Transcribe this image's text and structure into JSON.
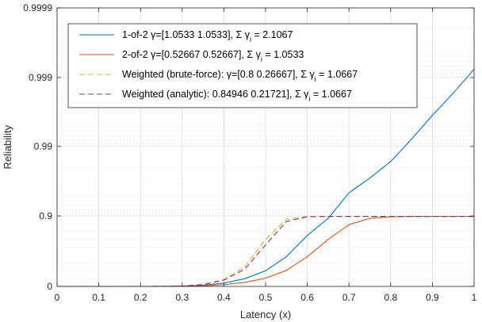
{
  "chart_data": {
    "type": "line",
    "xlabel": "Latency (x)",
    "ylabel": "Reliability",
    "xlim": [
      0,
      1
    ],
    "y_scale": "log-of-unreliability (1 - y)",
    "y_ticks": [
      "0",
      "0.9",
      "0.99",
      "0.999",
      "0.9999"
    ],
    "x_ticks": [
      "0",
      "0.1",
      "0.2",
      "0.3",
      "0.4",
      "0.5",
      "0.6",
      "0.7",
      "0.8",
      "0.9",
      "1"
    ],
    "grid": true,
    "minor_grid": true,
    "legend_position": "top-left",
    "series": [
      {
        "name": "1-of-2  γ=[1.0533      1.0533], Σ γ",
        "name_subscript": "i",
        "name_suffix": " = 2.1067",
        "color": "#0072BD",
        "style": "solid",
        "x": [
          0,
          0.2,
          0.25,
          0.3,
          0.35,
          0.4,
          0.45,
          0.5,
          0.55,
          0.6,
          0.65,
          0.7,
          0.75,
          0.8,
          0.85,
          0.9,
          0.95,
          1.0
        ],
        "y": [
          0,
          0,
          0.0003,
          0.0033,
          0.0145,
          0.042,
          0.098,
          0.2,
          0.38,
          0.65,
          0.87,
          0.9535,
          0.9715,
          0.9835,
          0.9921,
          0.99641,
          0.99828,
          0.99922
        ]
      },
      {
        "name": "2-of-2  γ=[0.52667      0.52667], Σ γ",
        "name_subscript": "i",
        "name_suffix": " = 1.0533",
        "color": "#D95319",
        "style": "solid",
        "x": [
          0,
          0.2,
          0.25,
          0.3,
          0.35,
          0.4,
          0.45,
          0.5,
          0.55,
          0.6,
          0.65,
          0.7,
          0.75,
          0.8,
          0.85,
          0.9,
          0.95,
          1.0
        ],
        "y": [
          0,
          0,
          0.0001,
          0.0015,
          0.0075,
          0.022,
          0.051,
          0.105,
          0.205,
          0.38,
          0.6,
          0.79,
          0.87,
          0.89,
          0.894,
          0.894,
          0.894,
          0.894
        ]
      },
      {
        "name": "Weighted (brute-force): γ=[0.8      0.26667], Σ γ",
        "name_subscript": "i",
        "name_suffix": " = 1.0667",
        "color": "#EDB120",
        "style": "dashed",
        "x": [
          0,
          0.2,
          0.25,
          0.3,
          0.35,
          0.4,
          0.45,
          0.5,
          0.55,
          0.6,
          0.65,
          0.7,
          0.75,
          0.8,
          0.85,
          0.9,
          0.95,
          1.0
        ],
        "y": [
          0,
          0,
          0.0003,
          0.0045,
          0.025,
          0.087,
          0.25,
          0.6,
          0.86,
          0.893,
          0.894,
          0.894,
          0.894,
          0.894,
          0.894,
          0.894,
          0.894,
          0.894
        ]
      },
      {
        "name": "Weighted (analytic): 0.84946      0.21721], Σ γ",
        "name_subscript": "i",
        "name_suffix": " = 1.0667",
        "color": "#7E2F8E",
        "style": "dashed",
        "x": [
          0,
          0.2,
          0.25,
          0.3,
          0.35,
          0.4,
          0.45,
          0.5,
          0.55,
          0.6,
          0.65,
          0.7,
          0.75,
          0.8,
          0.85,
          0.9,
          0.95,
          1.0
        ],
        "y": [
          0,
          0,
          0.0003,
          0.0042,
          0.023,
          0.08,
          0.22,
          0.53,
          0.83,
          0.89,
          0.894,
          0.894,
          0.894,
          0.894,
          0.894,
          0.894,
          0.894,
          0.894
        ]
      }
    ]
  }
}
